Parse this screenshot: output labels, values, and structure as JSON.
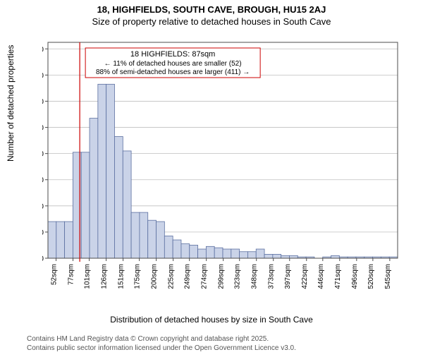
{
  "titles": {
    "main": "18, HIGHFIELDS, SOUTH CAVE, BROUGH, HU15 2AJ",
    "sub": "Size of property relative to detached houses in South Cave",
    "main_fontsize": 13,
    "sub_fontsize": 13,
    "font_color": "#000000"
  },
  "ylabel": "Number of detached properties",
  "xlabel": "Distribution of detached houses by size in South Cave",
  "axis_label_fontsize": 12,
  "footer": {
    "line1": "Contains HM Land Registry data © Crown copyright and database right 2025.",
    "line2": "Contains public sector information licensed under the Open Government Licence v3.0.",
    "fontsize": 10,
    "color": "#555555"
  },
  "callout": {
    "line1": "18 HIGHFIELDS: 87sqm",
    "line2": "← 11% of detached houses are smaller (52)",
    "line3": "88% of semi-detached houses are larger (411) →",
    "box_border": "#cc0000",
    "box_fill": "#ffffff",
    "fontsize_title": 11,
    "fontsize_body": 10
  },
  "marker_line": {
    "x_value": 87,
    "color": "#cc0000",
    "width": 1.2
  },
  "chart": {
    "type": "histogram",
    "bar_fill": "#cad3e8",
    "bar_stroke": "#5b6fa0",
    "background_color": "#ffffff",
    "grid_color": "#bfbfbf",
    "border_color": "#4d4d4d",
    "tick_font_color": "#000000",
    "tick_fontsize_y": 11,
    "tick_fontsize_x": 10,
    "ylim": [
      0,
      165
    ],
    "ytick_step": 20,
    "x_start": 40,
    "bin_width": 12.3,
    "bar_values": [
      28,
      28,
      28,
      81,
      81,
      107,
      133,
      133,
      93,
      82,
      35,
      35,
      29,
      28,
      17,
      14,
      11,
      10,
      7,
      9,
      8,
      7,
      7,
      5,
      5,
      7,
      3,
      3,
      2,
      2,
      1,
      1,
      0,
      1,
      2,
      1,
      1,
      1,
      1,
      1,
      1,
      1
    ],
    "x_tick_labels": [
      "52sqm",
      "77sqm",
      "101sqm",
      "126sqm",
      "151sqm",
      "175sqm",
      "200sqm",
      "225sqm",
      "249sqm",
      "274sqm",
      "299sqm",
      "323sqm",
      "348sqm",
      "373sqm",
      "397sqm",
      "422sqm",
      "446sqm",
      "471sqm",
      "496sqm",
      "520sqm",
      "545sqm"
    ],
    "x_tick_values": [
      52,
      77,
      101,
      126,
      151,
      175,
      200,
      225,
      249,
      274,
      299,
      323,
      348,
      373,
      397,
      422,
      446,
      471,
      496,
      520,
      545
    ]
  }
}
